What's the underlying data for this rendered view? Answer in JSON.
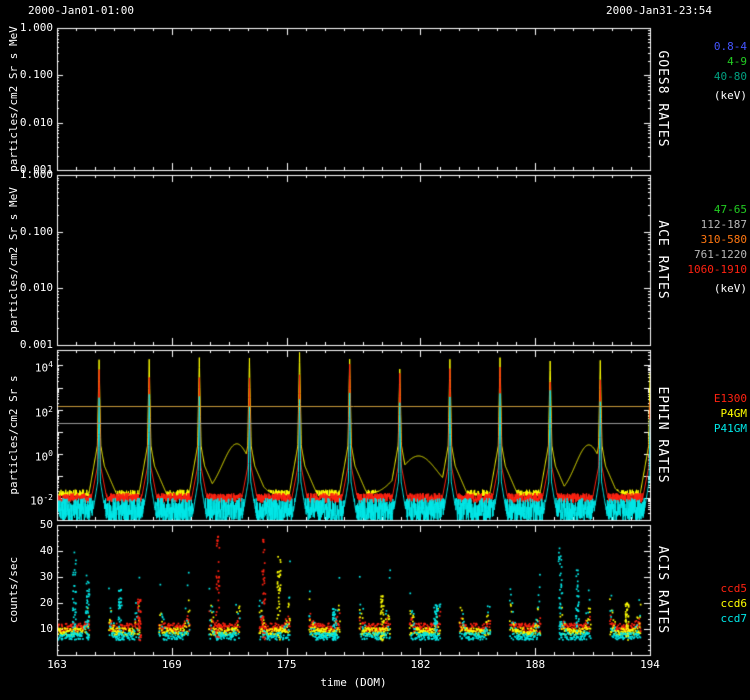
{
  "header": {
    "start": "2000-Jan01-01:00",
    "end": "2000-Jan31-23:54"
  },
  "xaxis": {
    "title": "time (DOM)",
    "range": [
      163,
      194
    ],
    "tick_values": [
      163,
      169,
      175,
      182,
      188,
      194
    ],
    "tick_labels": [
      "163",
      "169",
      "175",
      "182",
      "188",
      "194"
    ]
  },
  "chart_data": [
    {
      "id": "goes8",
      "type": "line",
      "right_title": "GOES8 RATES",
      "ytitle": "particles/cm2 Sr s MeV",
      "yscale": "log",
      "ylog_range": [
        -3,
        0
      ],
      "yticks": [
        {
          "label": "1.000",
          "log": 0
        },
        {
          "label": "0.100",
          "log": -1
        },
        {
          "label": "0.010",
          "log": -2
        },
        {
          "label": "0.001",
          "log": -3
        }
      ],
      "legend": [
        {
          "label": "0.8-4",
          "color": "#4455ff"
        },
        {
          "label": "4-9",
          "color": "#22cc22"
        },
        {
          "label": "40-80",
          "color": "#00a080"
        },
        {
          "label": "(keV)",
          "color": "#ffffff",
          "gap_before": true
        }
      ],
      "series": []
    },
    {
      "id": "ace",
      "type": "line",
      "right_title": "ACE RATES",
      "ytitle": "particles/cm2 Sr s MeV",
      "yscale": "log",
      "ylog_range": [
        -3,
        0
      ],
      "yticks": [
        {
          "label": "1.000",
          "log": 0
        },
        {
          "label": "0.100",
          "log": -1
        },
        {
          "label": "0.010",
          "log": -2
        },
        {
          "label": "0.001",
          "log": -3
        }
      ],
      "legend": [
        {
          "label": "47-65",
          "color": "#22cc22"
        },
        {
          "label": "112-187",
          "color": "#b8b8b8"
        },
        {
          "label": "310-580",
          "color": "#ff7711"
        },
        {
          "label": "761-1220",
          "color": "#b8b8b8"
        },
        {
          "label": "1060-1910",
          "color": "#ff2211"
        },
        {
          "label": "(keV)",
          "color": "#ffffff",
          "gap_before": true
        }
      ],
      "series": []
    },
    {
      "id": "ephin",
      "type": "line",
      "right_title": "EPHIN RATES",
      "ytitle": "particles/cm2 Sr s",
      "yscale": "log",
      "ylog_range": [
        -3,
        4.7
      ],
      "yticks": [
        {
          "base": "10",
          "exp": "4",
          "log": 4
        },
        {
          "base": "10",
          "exp": "2",
          "log": 2
        },
        {
          "base": "10",
          "exp": "0",
          "log": 0
        },
        {
          "base": "10",
          "exp": "-2",
          "log": -2
        }
      ],
      "legend": [
        {
          "label": "E1300",
          "color": "#ff2211"
        },
        {
          "label": "P4GM",
          "color": "#ffff00"
        },
        {
          "label": "P41GM",
          "color": "#00e8e8"
        }
      ],
      "orbit_spike_days": [
        165.2,
        167.82,
        170.44,
        173.06,
        175.68,
        178.3,
        180.92,
        183.54,
        186.16,
        188.78,
        191.4,
        194.02
      ],
      "threshold_lines": [
        {
          "log": 2.15,
          "color": "#c89a3a"
        },
        {
          "log": 1.4,
          "color": "#9a9a9a"
        }
      ],
      "series": [
        {
          "name": "P4GM",
          "color": "#ffff00",
          "base_log": -1.9,
          "noise_log": 0.28,
          "peak_log": 4.25,
          "spike_halfwidth_days": 0.14,
          "skirt_log": 0.8,
          "skirt_halfwidth_days": 0.55,
          "tail_start_log": 0.0,
          "tail_decay": 2.0,
          "seed": 11
        },
        {
          "name": "E1300",
          "color": "#ff2211",
          "base_log": -2.0,
          "noise_log": 0.22,
          "peak_log": 3.7,
          "spike_halfwidth_days": 0.11,
          "skirt_log": -0.2,
          "skirt_halfwidth_days": 0.4,
          "seed": 22
        },
        {
          "name": "P41GM",
          "color": "#00e8e8",
          "base_log": -2.5,
          "noise_log": 0.5,
          "peak_log": 2.5,
          "spike_halfwidth_days": 0.09,
          "skirt_log": -0.9,
          "skirt_halfwidth_days": 0.3,
          "dip_chance": 0.12,
          "dip_depth": 1.4,
          "seed": 33
        }
      ],
      "humps": [
        {
          "series": "P4GM",
          "center": 172.4,
          "sigma": 0.75,
          "peak_log": 0.45
        },
        {
          "series": "P4GM",
          "center": 181.9,
          "sigma": 1.0,
          "peak_log": -0.1
        },
        {
          "series": "P4GM",
          "center": 190.8,
          "sigma": 0.7,
          "peak_log": 0.4
        }
      ]
    },
    {
      "id": "acis",
      "type": "scatter",
      "right_title": "ACIS RATES",
      "ytitle": "counts/sec",
      "yscale": "linear",
      "ylim": [
        0,
        50
      ],
      "yticks": [
        {
          "label": "50",
          "value": 50
        },
        {
          "label": "40",
          "value": 40
        },
        {
          "label": "30",
          "value": 30
        },
        {
          "label": "20",
          "value": 20
        },
        {
          "label": "10",
          "value": 10
        }
      ],
      "legend": [
        {
          "label": "ccd5",
          "color": "#ff2211"
        },
        {
          "label": "ccd6",
          "color": "#ffff00"
        },
        {
          "label": "ccd7",
          "color": "#00e8e8"
        }
      ],
      "gap_centers": [
        165.2,
        167.82,
        170.44,
        173.06,
        175.68,
        178.3,
        180.92,
        183.54,
        186.16,
        188.78,
        191.4,
        194.02
      ],
      "gap_halfwidth_days": 0.5,
      "series": [
        {
          "name": "ccd5",
          "color": "#ff2211",
          "base": 10.6,
          "jitter": 1.6,
          "flare": 6,
          "seed": 101
        },
        {
          "name": "ccd6",
          "color": "#ffff00",
          "base": 9.0,
          "jitter": 1.4,
          "flare": 14,
          "seed": 102
        },
        {
          "name": "ccd7",
          "color": "#00e8e8",
          "base": 7.2,
          "jitter": 1.4,
          "flare": 28,
          "seed": 103
        }
      ],
      "bursts": [
        {
          "x": 163.9,
          "top": 40,
          "color": "#00e8e8"
        },
        {
          "x": 164.6,
          "top": 31,
          "color": "#00e8e8"
        },
        {
          "x": 166.3,
          "top": 26,
          "color": "#00e8e8"
        },
        {
          "x": 167.3,
          "top": 22,
          "color": "#ff2211"
        },
        {
          "x": 171.4,
          "top": 46,
          "color": "#ff2211"
        },
        {
          "x": 173.8,
          "top": 45,
          "color": "#ff2211"
        },
        {
          "x": 174.6,
          "top": 38,
          "color": "#ffff00"
        },
        {
          "x": 177.5,
          "top": 18,
          "color": "#00e8e8"
        },
        {
          "x": 180.0,
          "top": 24,
          "color": "#ffff00"
        },
        {
          "x": 182.8,
          "top": 20,
          "color": "#00e8e8"
        },
        {
          "x": 189.3,
          "top": 43,
          "color": "#00e8e8"
        },
        {
          "x": 190.2,
          "top": 35,
          "color": "#00e8e8"
        },
        {
          "x": 192.8,
          "top": 20,
          "color": "#ffff00"
        }
      ]
    }
  ]
}
